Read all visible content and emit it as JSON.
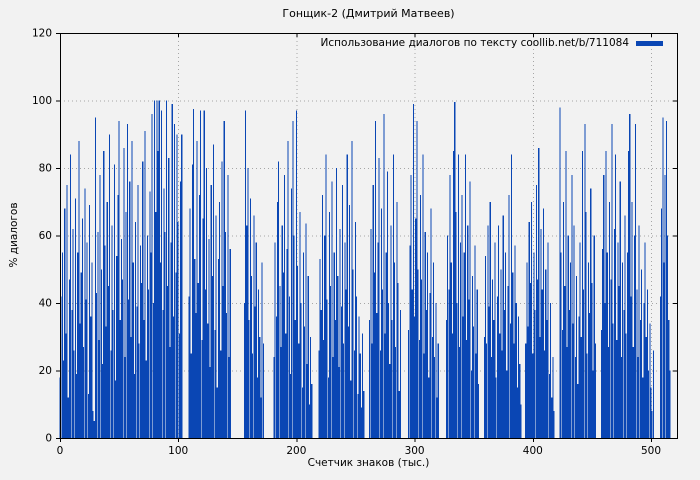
{
  "figure": {
    "background": "#f2f2f2",
    "text_color": "#000000",
    "grid_color": "#a6a6a6",
    "border_color": "#000000"
  },
  "chart_data": {
    "type": "bar",
    "title": "Гонщик-2 (Дмитрий Матвеев)",
    "xlabel": "Счетчик знаков (тыс.)",
    "ylabel": "% диалогов",
    "legend": "Использование диалогов по тексту coollib.net/b/711084",
    "legend_position": "top-right-inside",
    "bar_color": "#0a46b4",
    "grid": true,
    "xlim": [
      0,
      522
    ],
    "ylim": [
      0,
      120
    ],
    "xticks": [
      0,
      100,
      200,
      300,
      400,
      500
    ],
    "yticks": [
      0,
      20,
      40,
      60,
      80,
      100,
      120
    ],
    "x_start": 0,
    "x_step": 1,
    "values": [
      18,
      42,
      55,
      23,
      68,
      31,
      75,
      12,
      47,
      84,
      38,
      62,
      26,
      71,
      19,
      55,
      88,
      34,
      49,
      65,
      27,
      74,
      41,
      58,
      13,
      69,
      36,
      52,
      8,
      5,
      95,
      43,
      61,
      29,
      78,
      50,
      22,
      85,
      57,
      33,
      70,
      45,
      90,
      26,
      63,
      38,
      81,
      17,
      54,
      72,
      94,
      35,
      59,
      47,
      86,
      24,
      67,
      93,
      41,
      76,
      30,
      88,
      52,
      19,
      64,
      39,
      75,
      28,
      57,
      46,
      82,
      35,
      91,
      23,
      60,
      44,
      73,
      55,
      96,
      40,
      100,
      67,
      100,
      85,
      100,
      52,
      97,
      38,
      74,
      61,
      100,
      45,
      83,
      27,
      58,
      99,
      36,
      93,
      49,
      90,
      64,
      31,
      76,
      90,
      0,
      0,
      0,
      0,
      0,
      42,
      68,
      25,
      81,
      97.5,
      53,
      37,
      88,
      46,
      72,
      97,
      29,
      65,
      97,
      44,
      80,
      34,
      59,
      21,
      75,
      48,
      87,
      32,
      66,
      15,
      53,
      70,
      26,
      82,
      45,
      94,
      61,
      37,
      78,
      24,
      56,
      0,
      0,
      0,
      0,
      0,
      0,
      0,
      0,
      0,
      0,
      0,
      40,
      97,
      63,
      80,
      35,
      71,
      48,
      25,
      66,
      39,
      58,
      18,
      44,
      30,
      12,
      52,
      28,
      0,
      0,
      0,
      0,
      0,
      0,
      0,
      0,
      24,
      58,
      36,
      70,
      82,
      45,
      27,
      63,
      49,
      78,
      31,
      56,
      88,
      42,
      19,
      74,
      94,
      60,
      35,
      97,
      51,
      28,
      67,
      40,
      15,
      55,
      33,
      63.5,
      22,
      48,
      10,
      30,
      16,
      0,
      0,
      0,
      0,
      0,
      26,
      53,
      38,
      72,
      29,
      60,
      84,
      41,
      18,
      67,
      45,
      76,
      24,
      55,
      35,
      80,
      48,
      21,
      62,
      39,
      75,
      28,
      58,
      44,
      84,
      33,
      69,
      17,
      88,
      50,
      26,
      64,
      42,
      13,
      36,
      25,
      9,
      31,
      14,
      0,
      0,
      0,
      0,
      35,
      62,
      28,
      75,
      49,
      94,
      37,
      58,
      83,
      26,
      68,
      44,
      96,
      31,
      55,
      79,
      40,
      22,
      63,
      35,
      84,
      52,
      27,
      70,
      46,
      14,
      38,
      0,
      0,
      0,
      0,
      0,
      0,
      32,
      57,
      78,
      44,
      99,
      36,
      65,
      94,
      50,
      29,
      72,
      47,
      84,
      25,
      61,
      38,
      55,
      18,
      43,
      68,
      30,
      52,
      24,
      40,
      12,
      28,
      0,
      0,
      0,
      0,
      0,
      0,
      35,
      60,
      44,
      78,
      52,
      31,
      85,
      99.5,
      67,
      40,
      84,
      27,
      58,
      72,
      36,
      55,
      84,
      29,
      63,
      41,
      76,
      20,
      48,
      33,
      57,
      25,
      44,
      16,
      0,
      0,
      0,
      0,
      30,
      54,
      28,
      63,
      39,
      70,
      24,
      47,
      35,
      58,
      18,
      42,
      63,
      31,
      50,
      26,
      66,
      38,
      55,
      20,
      45,
      72,
      34,
      84,
      49,
      28,
      57,
      40,
      15,
      36,
      22,
      10,
      0,
      0,
      0,
      28,
      52,
      33,
      64,
      46,
      70,
      25,
      55,
      38,
      75,
      47,
      86,
      30,
      62,
      44,
      68,
      26,
      50,
      35,
      58,
      19,
      40,
      12,
      24,
      8,
      0,
      0,
      0,
      0,
      98,
      55,
      32,
      70,
      45,
      85,
      27,
      60,
      38,
      52,
      78,
      34,
      63,
      24,
      48,
      16,
      36,
      58,
      30,
      85,
      44,
      93,
      67,
      25,
      52,
      37,
      74,
      46,
      20,
      60,
      28,
      0,
      0,
      0,
      0,
      32,
      56,
      78,
      40,
      85,
      55,
      27,
      70,
      47,
      93,
      34,
      62,
      84,
      29,
      58,
      45,
      76,
      24,
      52,
      38,
      66,
      31,
      55,
      85,
      96,
      42,
      70,
      27,
      60,
      93,
      44,
      24,
      63,
      35,
      50,
      18,
      40,
      58,
      30,
      44,
      20,
      34,
      15,
      8,
      26,
      0,
      0,
      0,
      0,
      0,
      42,
      68,
      95,
      52,
      78,
      94,
      60,
      35,
      20
    ]
  }
}
